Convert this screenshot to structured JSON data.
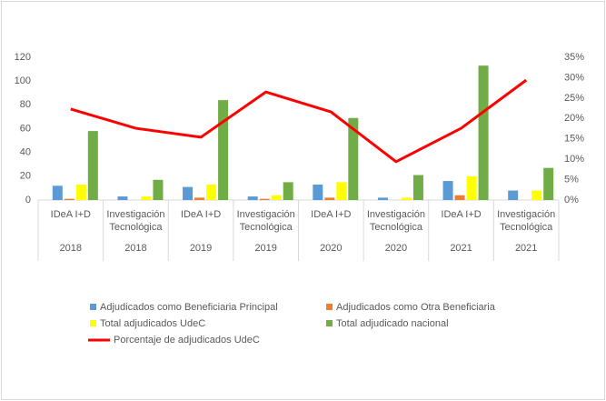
{
  "chart_data": {
    "type": "bar",
    "categories": [
      "IDeA I+D",
      "Investigación Tecnológica",
      "IDeA I+D",
      "Investigación Tecnológica",
      "IDeA I+D",
      "Investigación Tecnológica",
      "IDeA I+D",
      "Investigación Tecnológica"
    ],
    "years": [
      "2018",
      "2018",
      "2019",
      "2019",
      "2020",
      "2020",
      "2021",
      "2021"
    ],
    "series": [
      {
        "name": "Adjudicados como Beneficiaria Principal",
        "color": "#5b9bd5",
        "values": [
          12,
          3,
          11,
          3,
          13,
          2,
          16,
          8
        ]
      },
      {
        "name": "Adjudicados como Otra Beneficiaria",
        "color": "#ed7d31",
        "values": [
          1,
          0,
          2,
          1,
          2,
          0,
          4,
          0
        ]
      },
      {
        "name": "Total adjudicados UdeC",
        "color": "#ffff00",
        "values": [
          13,
          3,
          13,
          4,
          15,
          2,
          20,
          8
        ]
      },
      {
        "name": "Total adjudicado nacional",
        "color": "#70ad47",
        "values": [
          58,
          17,
          84,
          15,
          69,
          21,
          113,
          27
        ]
      },
      {
        "name": "Porcentaje de adjudicados UdeC",
        "color": "#ff0000",
        "type": "line",
        "axis": "y2",
        "values": [
          22.3,
          17.6,
          15.4,
          26.5,
          21.6,
          9.4,
          17.6,
          29.4
        ]
      }
    ],
    "ylim": [
      0,
      120
    ],
    "yticks": [
      0,
      20,
      40,
      60,
      80,
      100,
      120
    ],
    "y2lim": [
      0,
      35
    ],
    "y2ticks": [
      {
        "value": 0,
        "label": "0%"
      },
      {
        "value": 5,
        "label": "5%"
      },
      {
        "value": 10,
        "label": "10%"
      },
      {
        "value": 15,
        "label": "15%"
      },
      {
        "value": 20,
        "label": "20%"
      },
      {
        "value": 25,
        "label": "25%"
      },
      {
        "value": 30,
        "label": "30%"
      },
      {
        "value": 35,
        "label": "35%"
      }
    ],
    "grid": false,
    "legend": "bottom"
  }
}
